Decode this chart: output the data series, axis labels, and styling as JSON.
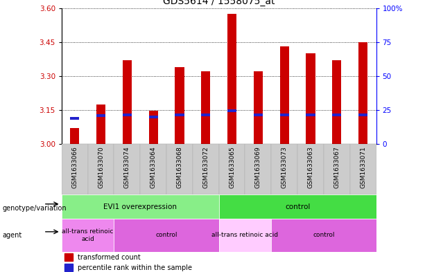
{
  "title": "GDS5614 / 1558075_at",
  "samples": [
    "GSM1633066",
    "GSM1633070",
    "GSM1633074",
    "GSM1633064",
    "GSM1633068",
    "GSM1633072",
    "GSM1633065",
    "GSM1633069",
    "GSM1633073",
    "GSM1633063",
    "GSM1633067",
    "GSM1633071"
  ],
  "bar_values": [
    3.07,
    3.175,
    3.37,
    3.148,
    3.34,
    3.32,
    3.575,
    3.32,
    3.43,
    3.4,
    3.37,
    3.45
  ],
  "percentile_positions": [
    3.115,
    3.127,
    3.13,
    3.12,
    3.13,
    3.128,
    3.148,
    3.128,
    3.13,
    3.13,
    3.128,
    3.13
  ],
  "ymin": 3.0,
  "ymax": 3.6,
  "yticks": [
    3.0,
    3.15,
    3.3,
    3.45,
    3.6
  ],
  "right_yticks": [
    0,
    25,
    50,
    75,
    100
  ],
  "bar_color": "#cc0000",
  "percentile_color": "#2222cc",
  "background_color": "#ffffff",
  "genotype_groups": [
    {
      "label": "EVI1 overexpression",
      "start": 0,
      "end": 5,
      "color": "#88ee88"
    },
    {
      "label": "control",
      "start": 6,
      "end": 11,
      "color": "#44dd44"
    }
  ],
  "agent_groups": [
    {
      "label": "all-trans retinoic\nacid",
      "start": 0,
      "end": 1,
      "color": "#ee88ee"
    },
    {
      "label": "control",
      "start": 2,
      "end": 5,
      "color": "#dd66dd"
    },
    {
      "label": "all-trans retinoic acid",
      "start": 6,
      "end": 7,
      "color": "#ffccff"
    },
    {
      "label": "control",
      "start": 8,
      "end": 11,
      "color": "#dd66dd"
    }
  ],
  "bar_width": 0.35,
  "title_fontsize": 10,
  "tick_fontsize": 7.5,
  "label_fontsize": 7
}
